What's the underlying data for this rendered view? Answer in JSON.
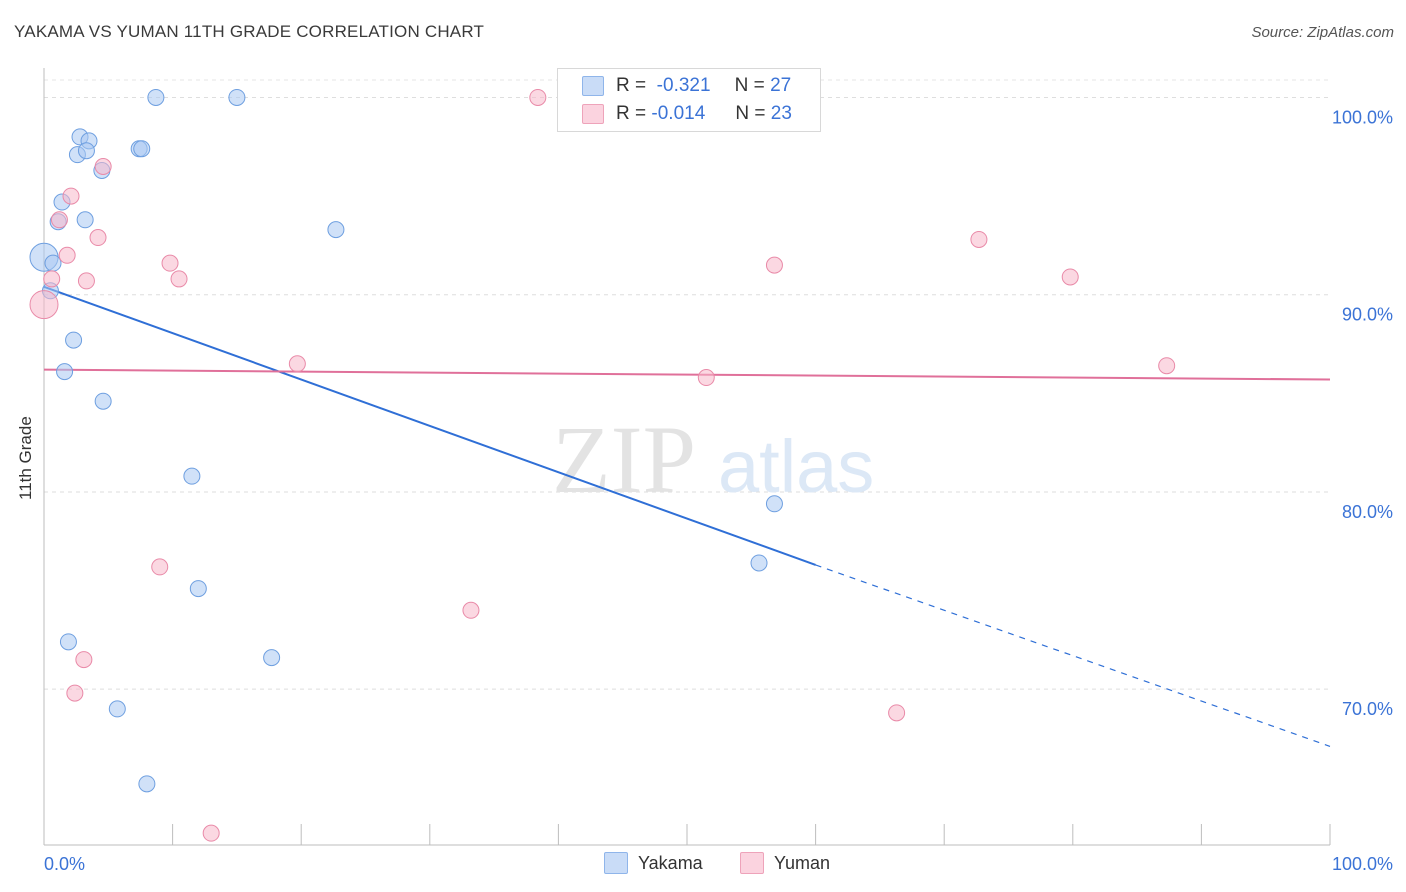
{
  "title": "YAKAMA VS YUMAN 11TH GRADE CORRELATION CHART",
  "source": "Source: ZipAtlas.com",
  "watermark": {
    "zip": "ZIP",
    "atlas": "atlas"
  },
  "legend": {
    "rows": [
      {
        "r_label": "R =",
        "r_value": "-0.321",
        "n_label": "N =",
        "n_value": "27",
        "color": "#a9c8f2"
      },
      {
        "r_label": "R =",
        "r_value": "-0.014",
        "n_label": "N =",
        "n_value": "23",
        "color": "#f7b8cb"
      }
    ]
  },
  "bottom_legend": [
    {
      "label": "Yakama",
      "color": "#a9c8f2"
    },
    {
      "label": "Yuman",
      "color": "#f7b8cb"
    }
  ],
  "chart_data": {
    "type": "scatter",
    "title": "YAKAMA VS YUMAN 11TH GRADE CORRELATION CHART",
    "xlabel": "",
    "ylabel": "11th Grade",
    "x_ticks": [
      "0.0%",
      "100.0%"
    ],
    "y_ticks": [
      "100.0%",
      "90.0%",
      "80.0%",
      "70.0%"
    ],
    "y_tick_values": [
      100,
      90,
      80,
      70
    ],
    "xlim": [
      0,
      100
    ],
    "ylim": [
      62.1,
      101.9
    ],
    "grid": true,
    "series": [
      {
        "name": "Yakama",
        "color": "#a9c8f2",
        "stroke": "#6e9fe0",
        "line_color": "#2f6fd6",
        "trend": {
          "x0": 0,
          "y0": 90.4,
          "x1": 60,
          "y1": 76.3,
          "dash_to_x": 100,
          "dash_to_y": 67.1
        },
        "points": [
          [
            8.7,
            100.0
          ],
          [
            15.0,
            100.0
          ],
          [
            2.8,
            98.0
          ],
          [
            3.5,
            97.8
          ],
          [
            2.6,
            97.1
          ],
          [
            3.3,
            97.3
          ],
          [
            7.4,
            97.4
          ],
          [
            7.6,
            97.4
          ],
          [
            4.5,
            96.3
          ],
          [
            1.4,
            94.7
          ],
          [
            1.1,
            93.7
          ],
          [
            3.2,
            93.8
          ],
          [
            22.7,
            93.3
          ],
          [
            0.0,
            91.9
          ],
          [
            0.7,
            91.6
          ],
          [
            0.5,
            90.2
          ],
          [
            2.3,
            87.7
          ],
          [
            1.6,
            86.1
          ],
          [
            4.6,
            84.6
          ],
          [
            11.5,
            80.8
          ],
          [
            56.8,
            79.4
          ],
          [
            55.6,
            76.4
          ],
          [
            12.0,
            75.1
          ],
          [
            1.9,
            72.4
          ],
          [
            17.7,
            71.6
          ],
          [
            5.7,
            69.0
          ],
          [
            8.0,
            65.2
          ]
        ]
      },
      {
        "name": "Yuman",
        "color": "#f7b8cb",
        "stroke": "#e98aa8",
        "line_color": "#e0709a",
        "trend": {
          "x0": 0,
          "y0": 86.2,
          "x1": 100,
          "y1": 85.7
        },
        "points": [
          [
            38.4,
            100.0
          ],
          [
            4.6,
            96.5
          ],
          [
            2.1,
            95.0
          ],
          [
            1.2,
            93.8
          ],
          [
            4.2,
            92.9
          ],
          [
            1.8,
            92.0
          ],
          [
            9.8,
            91.6
          ],
          [
            56.8,
            91.5
          ],
          [
            72.7,
            92.8
          ],
          [
            0.6,
            90.8
          ],
          [
            3.3,
            90.7
          ],
          [
            10.5,
            90.8
          ],
          [
            79.8,
            90.9
          ],
          [
            0.0,
            89.5
          ],
          [
            19.7,
            86.5
          ],
          [
            87.3,
            86.4
          ],
          [
            51.5,
            85.8
          ],
          [
            9.0,
            76.2
          ],
          [
            33.2,
            74.0
          ],
          [
            3.1,
            71.5
          ],
          [
            2.4,
            69.8
          ],
          [
            66.3,
            68.8
          ],
          [
            13.0,
            62.7
          ]
        ]
      }
    ]
  }
}
